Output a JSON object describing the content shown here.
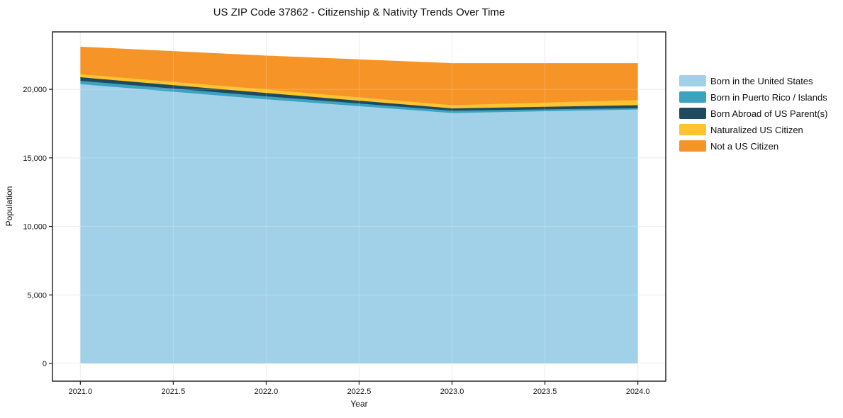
{
  "chart_data": {
    "type": "area",
    "stacked": true,
    "title": "US ZIP Code 37862 - Citizenship & Nativity Trends Over Time",
    "xlabel": "Year",
    "ylabel": "Population",
    "x": [
      2021,
      2022,
      2023,
      2024
    ],
    "series": [
      {
        "name": "Born in the United States",
        "color": "#A0D1E8",
        "values": [
          20380,
          19270,
          18270,
          18530
        ]
      },
      {
        "name": "Born in Puerto Rico / Islands",
        "color": "#3BA2C0",
        "values": [
          240,
          220,
          170,
          100
        ]
      },
      {
        "name": "Born Abroad of US Parent(s)",
        "color": "#1F4A5E",
        "values": [
          260,
          240,
          170,
          210
        ]
      },
      {
        "name": "Naturalized US Citizen",
        "color": "#FDC330",
        "values": [
          220,
          260,
          230,
          380
        ]
      },
      {
        "name": "Not a US Citizen",
        "color": "#F79428",
        "values": [
          1960,
          2420,
          3020,
          2640
        ]
      }
    ],
    "totals": [
      23060,
      22410,
      21860,
      21860
    ],
    "x_ticks": [
      2021.0,
      2021.5,
      2022.0,
      2022.5,
      2023.0,
      2023.5,
      2024.0
    ],
    "x_tick_labels": [
      "2021.0",
      "2021.5",
      "2022.0",
      "2022.5",
      "2023.0",
      "2023.5",
      "2024.0"
    ],
    "y_ticks": [
      0,
      5000,
      10000,
      15000,
      20000
    ],
    "y_tick_labels": [
      "0",
      "5,000",
      "10,000",
      "15,000",
      "20,000"
    ],
    "xlim": [
      2020.85,
      2024.15
    ],
    "ylim": [
      -1290,
      24190
    ],
    "grid": true,
    "legend_position": "right-outside",
    "background": "#ffffff",
    "grid_color": "#e7e7e7",
    "axis_color": "#1a1a1a"
  }
}
